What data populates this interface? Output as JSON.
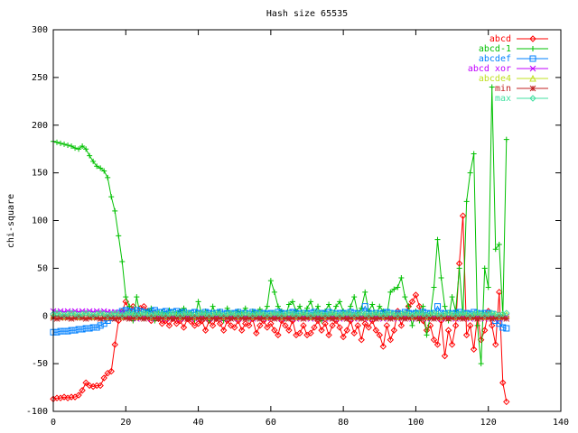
{
  "chart_data": {
    "type": "line",
    "title": "Hash size 65535",
    "y_label": "chi-square",
    "xlim": [
      0,
      140
    ],
    "xticks": [
      0,
      20,
      40,
      60,
      80,
      100,
      120,
      140
    ],
    "ylim": [
      -100,
      300
    ],
    "yticks": [
      -100,
      -50,
      0,
      50,
      100,
      150,
      200,
      250,
      300
    ],
    "legend": "top right",
    "grid": false,
    "x": [
      0,
      1,
      2,
      3,
      4,
      5,
      6,
      7,
      8,
      9,
      10,
      11,
      12,
      13,
      14,
      15,
      16,
      17,
      18,
      19,
      20,
      21,
      22,
      23,
      24,
      25,
      26,
      27,
      28,
      29,
      30,
      31,
      32,
      33,
      34,
      35,
      36,
      37,
      38,
      39,
      40,
      41,
      42,
      43,
      44,
      45,
      46,
      47,
      48,
      49,
      50,
      51,
      52,
      53,
      54,
      55,
      56,
      57,
      58,
      59,
      60,
      61,
      62,
      63,
      64,
      65,
      66,
      67,
      68,
      69,
      70,
      71,
      72,
      73,
      74,
      75,
      76,
      77,
      78,
      79,
      80,
      81,
      82,
      83,
      84,
      85,
      86,
      87,
      88,
      89,
      90,
      91,
      92,
      93,
      94,
      95,
      96,
      97,
      98,
      99,
      100,
      101,
      102,
      103,
      104,
      105,
      106,
      107,
      108,
      109,
      110,
      111,
      112,
      113,
      114,
      115,
      116,
      117,
      118,
      119,
      120,
      121,
      122,
      123,
      124,
      125
    ],
    "series": [
      {
        "name": "abcd",
        "color": "#ff0000",
        "marker": "diamond",
        "values": [
          -87,
          -86,
          -86,
          -85,
          -86,
          -85,
          -85,
          -83,
          -78,
          -70,
          -73,
          -74,
          -73,
          -73,
          -65,
          -60,
          -58,
          -30,
          -5,
          5,
          15,
          5,
          10,
          0,
          8,
          10,
          5,
          -5,
          3,
          -3,
          -8,
          -5,
          -10,
          -3,
          -8,
          -5,
          -12,
          -3,
          -6,
          -10,
          -8,
          -5,
          -15,
          -5,
          -10,
          -3,
          -8,
          -15,
          -5,
          -10,
          -12,
          -5,
          -15,
          -8,
          -10,
          -3,
          -18,
          -10,
          -5,
          -12,
          -8,
          -15,
          -20,
          -5,
          -10,
          -15,
          -5,
          -20,
          -18,
          -10,
          -20,
          -18,
          -12,
          -5,
          -15,
          -8,
          -20,
          -10,
          -5,
          -12,
          -22,
          -15,
          -5,
          -18,
          -10,
          -25,
          -8,
          -12,
          -5,
          -15,
          -20,
          -32,
          -10,
          -25,
          -15,
          5,
          -10,
          0,
          10,
          15,
          22,
          10,
          -5,
          -15,
          -10,
          -25,
          -30,
          -5,
          -42,
          -15,
          -30,
          -10,
          55,
          105,
          -20,
          -10,
          -35,
          0,
          -25,
          -15,
          5,
          -10,
          -30,
          25,
          -70,
          -90
        ]
      },
      {
        "name": "abcd-1",
        "color": "#00c000",
        "marker": "plus",
        "values": [
          183,
          182,
          181,
          180,
          179,
          178,
          176,
          175,
          178,
          175,
          168,
          162,
          157,
          155,
          152,
          145,
          125,
          110,
          84,
          57,
          20,
          10,
          -5,
          20,
          0,
          -3,
          5,
          8,
          -5,
          3,
          4,
          2,
          6,
          -2,
          3,
          5,
          8,
          0,
          3,
          -4,
          15,
          2,
          5,
          -5,
          10,
          0,
          5,
          -5,
          8,
          2,
          -2,
          5,
          3,
          8,
          -3,
          5,
          2,
          7,
          0,
          10,
          37,
          25,
          10,
          5,
          -3,
          12,
          15,
          5,
          10,
          0,
          8,
          15,
          3,
          10,
          -5,
          5,
          12,
          0,
          10,
          15,
          5,
          -3,
          10,
          20,
          3,
          8,
          25,
          5,
          12,
          0,
          10,
          5,
          0,
          25,
          28,
          30,
          40,
          20,
          10,
          -10,
          5,
          -5,
          10,
          -20,
          0,
          30,
          80,
          40,
          10,
          -5,
          20,
          5,
          50,
          0,
          120,
          150,
          170,
          -10,
          -50,
          50,
          30,
          240,
          70,
          75,
          0,
          185
        ]
      },
      {
        "name": "abcdef",
        "color": "#0080ff",
        "marker": "square",
        "values": [
          -17,
          -17,
          -16,
          -16,
          -16,
          -15,
          -15,
          -14,
          -14,
          -13,
          -13,
          -12,
          -12,
          -10,
          -8,
          -5,
          -2,
          0,
          3,
          5,
          6,
          5,
          4,
          6,
          5,
          4,
          3,
          5,
          6,
          4,
          4,
          5,
          3,
          4,
          5,
          3,
          4,
          2,
          3,
          4,
          3,
          2,
          4,
          3,
          2,
          3,
          4,
          2,
          3,
          2,
          3,
          4,
          2,
          3,
          2,
          4,
          3,
          2,
          3,
          2,
          3,
          2,
          4,
          3,
          2,
          3,
          4,
          3,
          2,
          3,
          2,
          3,
          4,
          2,
          3,
          2,
          4,
          3,
          2,
          3,
          3,
          2,
          4,
          3,
          2,
          3,
          10,
          3,
          2,
          3,
          2,
          3,
          4,
          3,
          2,
          3,
          2,
          4,
          3,
          2,
          3,
          2,
          4,
          3,
          2,
          3,
          10,
          3,
          2,
          3,
          2,
          3,
          4,
          2,
          3,
          2,
          4,
          3,
          2,
          3,
          3,
          2,
          -5,
          -8,
          -12,
          -13
        ]
      },
      {
        "name": "abcd xor",
        "color": "#c000ff",
        "marker": "cross",
        "values": [
          5,
          4,
          5,
          4,
          5,
          4,
          5,
          4,
          5,
          4,
          5,
          4,
          5,
          4,
          5,
          4,
          4,
          4,
          3,
          3,
          -2,
          -1,
          -2,
          -3,
          -2,
          -1,
          -2,
          -3,
          -2,
          -1,
          -2,
          -3,
          -2,
          -1,
          -2,
          -3,
          -2,
          -1,
          -2,
          -3,
          -2,
          -1,
          -2,
          -3,
          -2,
          -1,
          -2,
          -3,
          -2,
          -1,
          -2,
          -3,
          -2,
          -1,
          -2,
          -3,
          -2,
          -1,
          -2,
          -3,
          -2,
          -1,
          -2,
          -3,
          -2,
          -1,
          -2,
          -3,
          -2,
          -1,
          -2,
          -3,
          -2,
          -1,
          -2,
          -3,
          -2,
          -1,
          -2,
          -3,
          -2,
          -1,
          -2,
          -3,
          -2,
          -1,
          -2,
          -3,
          -2,
          -1,
          -2,
          -3,
          -2,
          -1,
          -2,
          -3,
          -2,
          -1,
          -2,
          -3,
          -2,
          -1,
          -2,
          -3,
          -2,
          -1,
          -2,
          -3,
          -2,
          -1,
          -2,
          -3,
          -2,
          -1,
          -2,
          -3,
          -2,
          -1,
          -2,
          -3,
          -2,
          -1,
          -2,
          -3,
          -2,
          -1
        ]
      },
      {
        "name": "abcde4",
        "color": "#c0e020",
        "marker": "triangle",
        "values": [
          0,
          1,
          0,
          -1,
          0,
          1,
          0,
          -1,
          0,
          1,
          0,
          -1,
          0,
          1,
          0,
          -1,
          0,
          1,
          0,
          -1,
          0,
          1,
          0,
          -1,
          0,
          1,
          0,
          -1,
          0,
          1,
          0,
          -1,
          0,
          1,
          0,
          -1,
          0,
          1,
          0,
          -1,
          0,
          1,
          0,
          -1,
          0,
          1,
          0,
          -1,
          0,
          1,
          0,
          -1,
          0,
          1,
          0,
          -1,
          0,
          1,
          0,
          -1,
          0,
          1,
          0,
          -1,
          0,
          1,
          0,
          -1,
          0,
          1,
          0,
          -1,
          0,
          1,
          0,
          -1,
          0,
          1,
          0,
          -1,
          0,
          1,
          0,
          -1,
          0,
          1,
          0,
          -1,
          0,
          1,
          0,
          -1,
          0,
          1,
          0,
          -1,
          0,
          1,
          0,
          -1,
          0,
          1,
          0,
          -1,
          0,
          1,
          0,
          -1,
          0,
          1,
          0,
          -1,
          0,
          1,
          0,
          -1,
          0,
          1,
          0,
          -1,
          0,
          1,
          0,
          -1,
          0,
          1
        ]
      },
      {
        "name": "min",
        "color": "#c02020",
        "marker": "star",
        "values": [
          -2,
          -3,
          -2,
          -1,
          -2,
          -3,
          -2,
          -1,
          -2,
          -3,
          -2,
          -1,
          -2,
          -3,
          -2,
          -1,
          -2,
          -3,
          -2,
          -1,
          -2,
          -3,
          -2,
          -1,
          -2,
          -3,
          -2,
          -1,
          -2,
          -3,
          -2,
          -1,
          -2,
          -3,
          -2,
          -1,
          -2,
          -3,
          -2,
          -1,
          -2,
          -3,
          -2,
          -1,
          -2,
          -3,
          -2,
          -1,
          -2,
          -3,
          -2,
          -1,
          -2,
          -3,
          -2,
          -1,
          -2,
          -3,
          -2,
          -1,
          -2,
          -3,
          -2,
          -1,
          -2,
          -3,
          -2,
          -1,
          -2,
          -3,
          -2,
          -1,
          -2,
          -3,
          -2,
          -1,
          -2,
          -3,
          -2,
          -1,
          -2,
          -3,
          -2,
          -1,
          -2,
          -3,
          -2,
          -1,
          -2,
          -3,
          -2,
          -1,
          -2,
          -3,
          -2,
          -1,
          -2,
          -3,
          -2,
          -1,
          -2,
          -3,
          -2,
          -1,
          -2,
          -3,
          -2,
          -1,
          -2,
          -3,
          -2,
          -1,
          -2,
          -3,
          -2,
          -1,
          -2,
          -3,
          -2,
          -1,
          -2,
          -3,
          -2,
          -1,
          -2,
          -3
        ]
      },
      {
        "name": "max",
        "color": "#40e0a0",
        "marker": "diamond",
        "values": [
          2,
          3,
          2,
          1,
          2,
          3,
          2,
          1,
          2,
          3,
          2,
          1,
          2,
          3,
          2,
          1,
          2,
          3,
          2,
          1,
          2,
          3,
          2,
          1,
          2,
          3,
          2,
          1,
          2,
          3,
          2,
          1,
          2,
          3,
          2,
          1,
          2,
          3,
          2,
          1,
          2,
          3,
          2,
          1,
          2,
          3,
          2,
          1,
          2,
          3,
          2,
          1,
          2,
          3,
          2,
          1,
          2,
          3,
          2,
          1,
          2,
          3,
          2,
          1,
          2,
          3,
          2,
          1,
          2,
          3,
          2,
          1,
          2,
          3,
          2,
          1,
          2,
          3,
          2,
          1,
          2,
          3,
          2,
          1,
          2,
          3,
          2,
          1,
          2,
          3,
          2,
          1,
          2,
          3,
          2,
          1,
          2,
          3,
          2,
          1,
          2,
          3,
          2,
          1,
          2,
          3,
          2,
          1,
          2,
          3,
          2,
          1,
          2,
          3,
          2,
          1,
          2,
          3,
          2,
          1,
          2,
          3,
          2,
          1,
          2,
          3
        ]
      }
    ]
  }
}
